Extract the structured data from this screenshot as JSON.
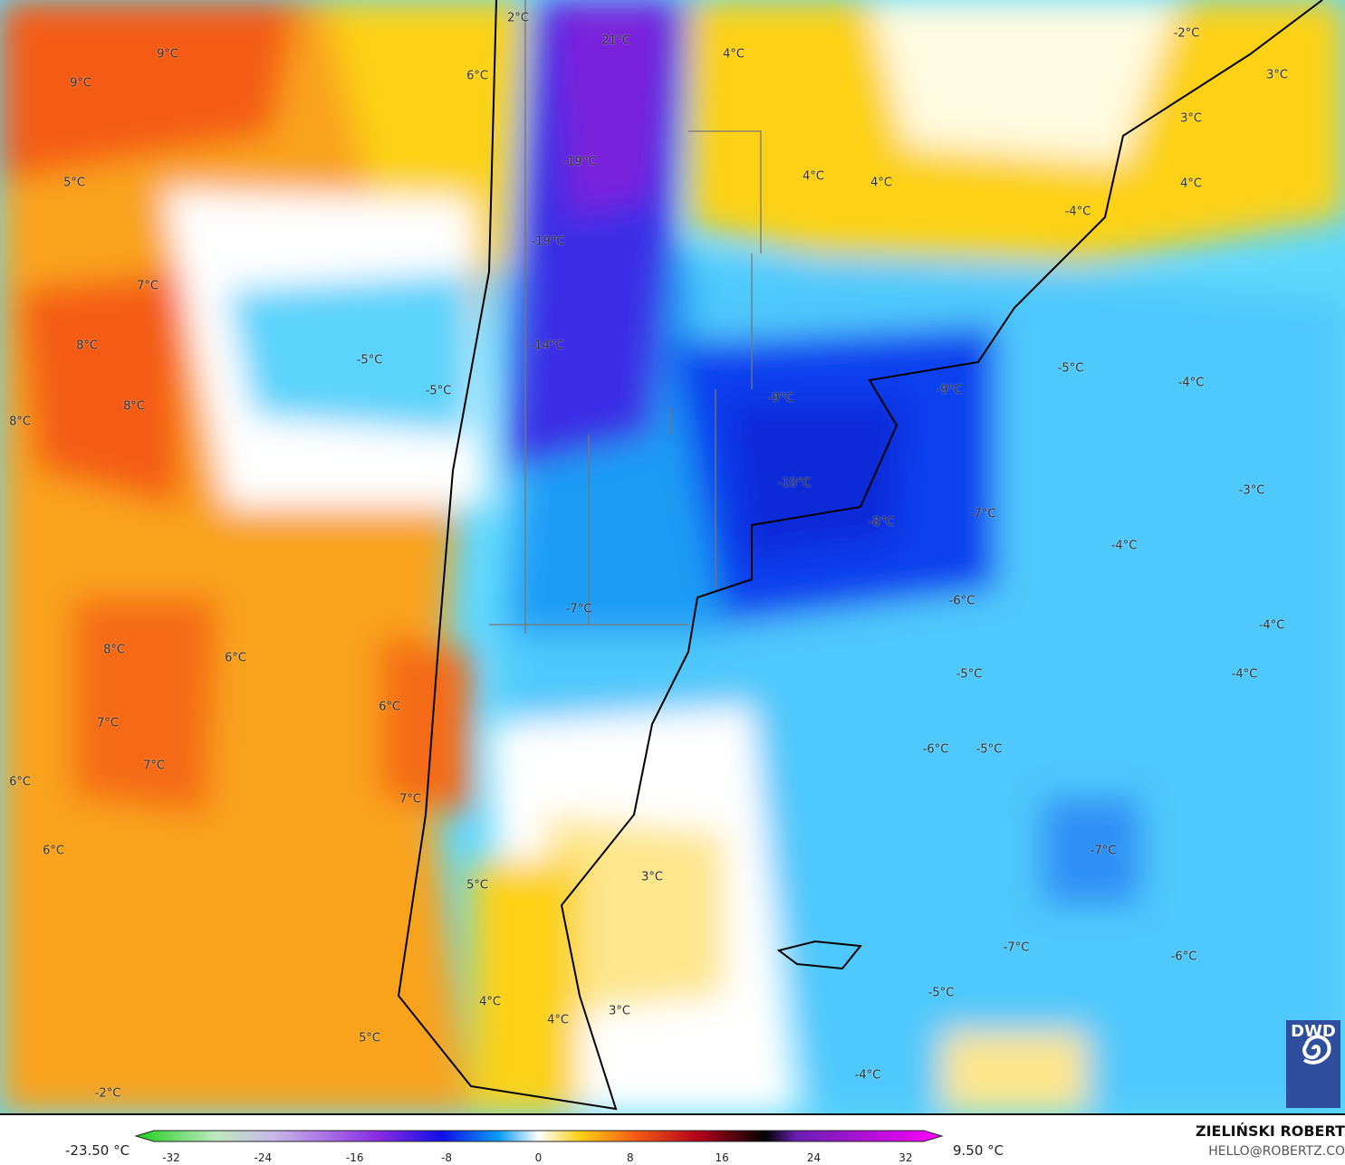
{
  "map": {
    "labels": [
      "2°C",
      "21°C",
      "9°C",
      "6°C",
      "4°C",
      "-2°C",
      "3°C",
      "9°C",
      "3°C",
      "-19°C",
      "4°C",
      "4°C",
      "5°C",
      "4°C",
      "-4°C",
      "-19°C",
      "7°C",
      "8°C",
      "-14°C",
      "-5°C",
      "-5°C",
      "-5°C",
      "-9°C",
      "-9°C",
      "-4°C",
      "8°C",
      "8°C",
      "-10°C",
      "-3°C",
      "-7°C",
      "-8°C",
      "-4°C",
      "-6°C",
      "-7°C",
      "-4°C",
      "8°C",
      "6°C",
      "-5°C",
      "-4°C",
      "6°C",
      "7°C",
      "-6°C",
      "-5°C",
      "7°C",
      "6°C",
      "7°C",
      "6°C",
      "-7°C",
      "3°C",
      "5°C",
      "-7°C",
      "-6°C",
      "-5°C",
      "4°C",
      "3°C",
      "4°C",
      "5°C",
      "-4°C",
      "-2°C"
    ],
    "logo": "DWD",
    "colors": {
      "warm": "#f7a21b",
      "hot": "#f25a12",
      "yellow": "#fcd116",
      "cold": "#4fd2fb",
      "colder": "#1f8bf5",
      "deep": "#0b2bea",
      "violet": "#6a1fd8"
    }
  },
  "legend": {
    "min_label": "-23.50 °C",
    "max_label": "9.50 °C",
    "ticks": [
      "-32",
      "-24",
      "-16",
      "-8",
      "0",
      "8",
      "16",
      "24",
      "32"
    ]
  },
  "credit": {
    "author": "ZIELIŃSKI ROBERT",
    "email": "HELLO@ROBERTZ.CO"
  }
}
